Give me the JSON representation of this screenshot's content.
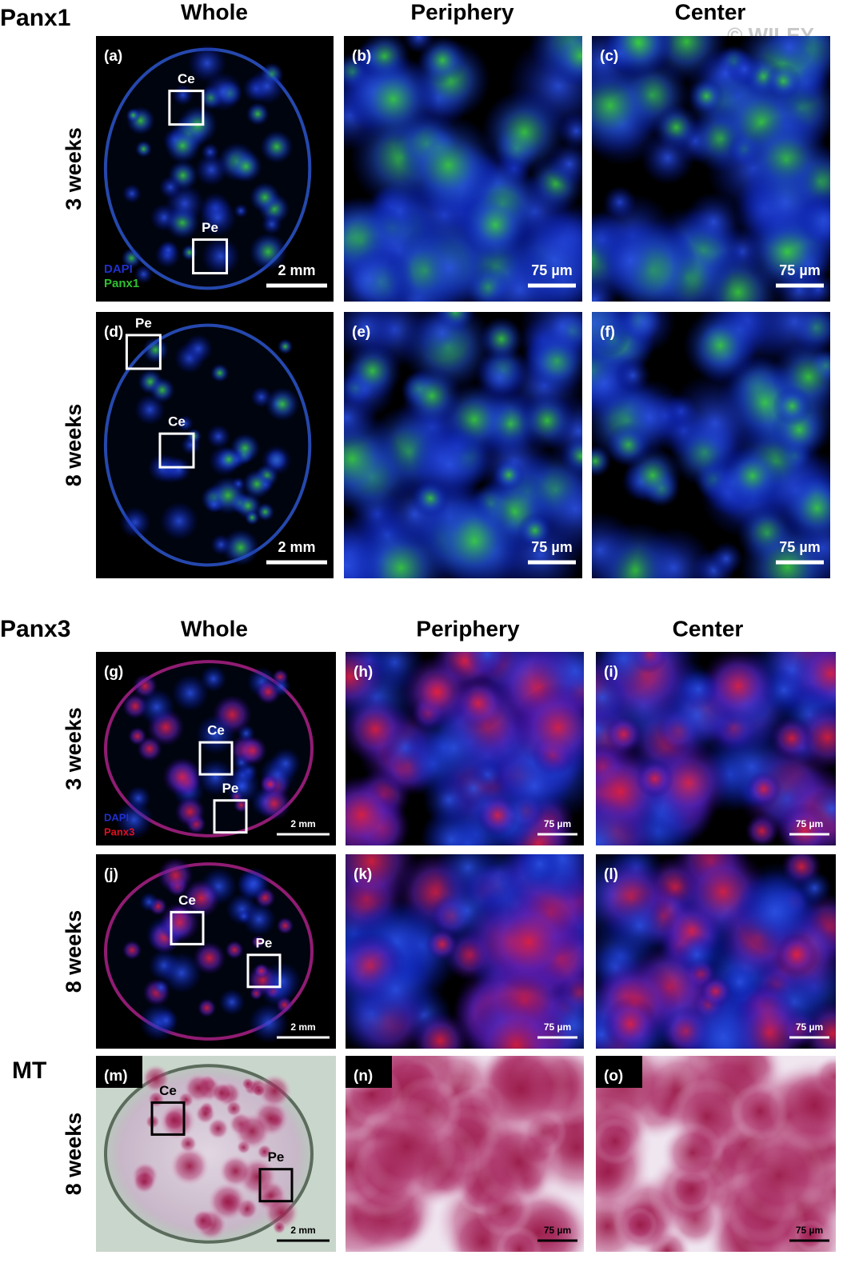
{
  "watermark": "© WILEY",
  "sections": [
    {
      "title": "Panx1",
      "columns": [
        "Whole",
        "Periphery",
        "Center"
      ],
      "rows": [
        {
          "label": "3 weeks",
          "panels": [
            {
              "letter": "(a)",
              "scale": "2 mm",
              "boxes": [
                "Ce",
                "Pe"
              ],
              "legend": [
                "DAPI",
                "Panx1"
              ]
            },
            {
              "letter": "(b)",
              "scale": "75 µm"
            },
            {
              "letter": "(c)",
              "scale": "75 µm"
            }
          ]
        },
        {
          "label": "8 weeks",
          "panels": [
            {
              "letter": "(d)",
              "scale": "2 mm",
              "boxes": [
                "Pe",
                "Ce"
              ]
            },
            {
              "letter": "(e)",
              "scale": "75 µm"
            },
            {
              "letter": "(f)",
              "scale": "75 µm"
            }
          ]
        }
      ]
    },
    {
      "title": "Panx3",
      "columns": [
        "Whole",
        "Periphery",
        "Center"
      ],
      "rows": [
        {
          "label": "3 weeks",
          "panels": [
            {
              "letter": "(g)",
              "scale": "2 mm",
              "boxes": [
                "Ce",
                "Pe"
              ],
              "legend": [
                "DAPI",
                "Panx3"
              ]
            },
            {
              "letter": "(h)",
              "scale": "75 µm"
            },
            {
              "letter": "(i)",
              "scale": "75 µm"
            }
          ]
        },
        {
          "label": "8 weeks",
          "panels": [
            {
              "letter": "(j)",
              "scale": "2 mm",
              "boxes": [
                "Ce",
                "Pe"
              ]
            },
            {
              "letter": "(k)",
              "scale": "75 µm"
            },
            {
              "letter": "(l)",
              "scale": "75 µm"
            }
          ]
        }
      ]
    },
    {
      "title": "MT",
      "rows": [
        {
          "label": "8 weeks",
          "panels": [
            {
              "letter": "(m)",
              "scale": "2 mm",
              "boxes": [
                "Ce",
                "Pe"
              ]
            },
            {
              "letter": "(n)",
              "scale": "75 µm"
            },
            {
              "letter": "(o)",
              "scale": "75 µm"
            }
          ]
        }
      ]
    }
  ]
}
